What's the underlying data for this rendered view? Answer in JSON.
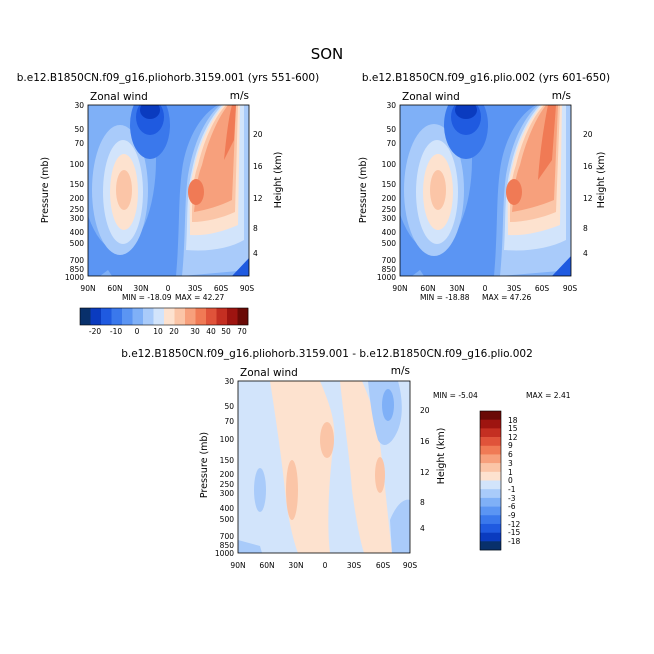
{
  "figure": {
    "title": "SON",
    "colors": {
      "scale": [
        "#08306b",
        "#0a3bbf",
        "#1f5ae0",
        "#3a78ec",
        "#5b95f3",
        "#7fb0f7",
        "#a9cbfa",
        "#d2e4fb",
        "#fde2cf",
        "#fbc5a7",
        "#f7a07c",
        "#f07a55",
        "#e0533a",
        "#c42f22",
        "#9e1410",
        "#6a0a06"
      ],
      "axis": "#000000"
    }
  },
  "chart_data": [
    {
      "type": "heatmap",
      "id": "panel_a",
      "title": "b.e12.B1850CN.f09_g16.pliohorb.3159.001 (yrs 551-600)",
      "left_label": "Zonal wind",
      "right_label": "m/s",
      "xlabel": "",
      "ylabel": "Pressure (mb)",
      "ylabel_right": "Height (km)",
      "x_ticks": [
        "90N",
        "60N",
        "30N",
        "0",
        "30S",
        "60S",
        "90S"
      ],
      "y_ticks": [
        "30",
        "50",
        "70",
        "100",
        "150",
        "200",
        "250",
        "300",
        "400",
        "500",
        "700",
        "850",
        "1000"
      ],
      "y_ticks_right": [
        "20",
        "16",
        "12",
        "8",
        "4"
      ],
      "min_label": "MIN = -18.09",
      "max_label": "MAX = 42.27",
      "min": -18.09,
      "max": 42.27
    },
    {
      "type": "heatmap",
      "id": "panel_b",
      "title": "b.e12.B1850CN.f09_g16.plio.002 (yrs 601-650)",
      "left_label": "Zonal wind",
      "right_label": "m/s",
      "xlabel": "",
      "ylabel": "Pressure (mb)",
      "ylabel_right": "Height (km)",
      "x_ticks": [
        "90N",
        "60N",
        "30N",
        "0",
        "30S",
        "60S",
        "90S"
      ],
      "y_ticks": [
        "30",
        "50",
        "70",
        "100",
        "150",
        "200",
        "250",
        "300",
        "400",
        "500",
        "700",
        "850",
        "1000"
      ],
      "y_ticks_right": [
        "20",
        "16",
        "12",
        "8",
        "4"
      ],
      "min_label": "MIN = -18.88",
      "max_label": "MAX = 47.26",
      "min": -18.88,
      "max": 47.26
    },
    {
      "type": "heatmap",
      "id": "panel_diff",
      "title": "b.e12.B1850CN.f09_g16.pliohorb.3159.001 - b.e12.B1850CN.f09_g16.plio.002",
      "left_label": "Zonal wind",
      "right_label": "m/s",
      "xlabel": "",
      "ylabel": "Pressure (mb)",
      "ylabel_right": "Height (km)",
      "x_ticks": [
        "90N",
        "60N",
        "30N",
        "0",
        "30S",
        "60S",
        "90S"
      ],
      "y_ticks": [
        "30",
        "50",
        "70",
        "100",
        "150",
        "200",
        "250",
        "300",
        "400",
        "500",
        "700",
        "850",
        "1000"
      ],
      "y_ticks_right": [
        "20",
        "16",
        "12",
        "8",
        "4"
      ],
      "min_label": "MIN = -5.04",
      "max_label": "MAX = 2.41",
      "min": -5.04,
      "max": 2.41
    }
  ],
  "colorbar_top": {
    "labels": [
      "-20",
      "-10",
      "0",
      "10",
      "20",
      "30",
      "40",
      "50",
      "70"
    ]
  },
  "colorbar_diff": {
    "labels": [
      "18",
      "15",
      "12",
      "9",
      "6",
      "3",
      "1",
      "0",
      "-1",
      "-3",
      "-6",
      "-9",
      "-12",
      "-15",
      "-18"
    ]
  }
}
